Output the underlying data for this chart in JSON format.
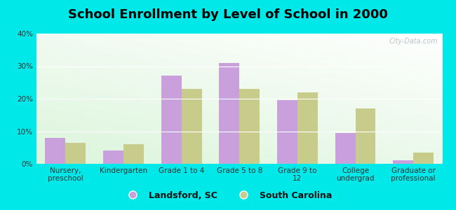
{
  "title": "School Enrollment by Level of School in 2000",
  "categories": [
    "Nursery,\npreschool",
    "Kindergarten",
    "Grade 1 to 4",
    "Grade 5 to 8",
    "Grade 9 to\n12",
    "College\nundergrad",
    "Graduate or\nprofessional"
  ],
  "landsford_values": [
    8.0,
    4.0,
    27.0,
    31.0,
    19.5,
    9.5,
    1.0
  ],
  "sc_values": [
    6.5,
    6.0,
    23.0,
    23.0,
    22.0,
    17.0,
    3.5
  ],
  "landsford_color": "#c9a0dc",
  "sc_color": "#c8cc8a",
  "background_color": "#00e8e8",
  "ylim": [
    0,
    40
  ],
  "yticks": [
    0,
    10,
    20,
    30,
    40
  ],
  "legend_labels": [
    "Landsford, SC",
    "South Carolina"
  ],
  "bar_width": 0.35,
  "title_fontsize": 13,
  "tick_fontsize": 7.5,
  "legend_fontsize": 9,
  "watermark": "City-Data.com"
}
